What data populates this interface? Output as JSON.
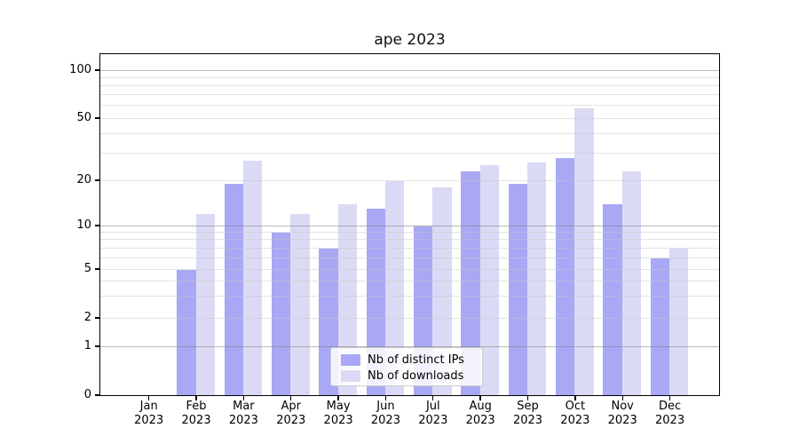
{
  "title": "ape 2023",
  "legend": {
    "entries": [
      {
        "label": "Nb of distinct IPs",
        "color": "#a8a8f5"
      },
      {
        "label": "Nb of downloads",
        "color": "#dadaf5"
      }
    ],
    "position": "lower center"
  },
  "axes": {
    "yticks": [
      0,
      1,
      2,
      5,
      10,
      20,
      50,
      100
    ],
    "scale": "symlog"
  },
  "chart_data": {
    "type": "bar",
    "title": "ape 2023",
    "categories": [
      "Jan 2023",
      "Feb 2023",
      "Mar 2023",
      "Apr 2023",
      "May 2023",
      "Jun 2023",
      "Jul 2023",
      "Aug 2023",
      "Sep 2023",
      "Oct 2023",
      "Nov 2023",
      "Dec 2023"
    ],
    "series": [
      {
        "name": "Nb of distinct IPs",
        "color": "#a8a8f5",
        "values": [
          0,
          5,
          19,
          9,
          7,
          13,
          10,
          23,
          19,
          28,
          14,
          6
        ]
      },
      {
        "name": "Nb of downloads",
        "color": "#dadaf5",
        "values": [
          0,
          12,
          27,
          12,
          14,
          20,
          18,
          25,
          26,
          58,
          23,
          7
        ]
      }
    ],
    "xlabel": "",
    "ylabel": "",
    "ylim": [
      0,
      128
    ],
    "yticks": [
      0,
      1,
      2,
      5,
      10,
      20,
      50,
      100
    ],
    "scale": "symlog",
    "grid": true,
    "legend_position": "lower center"
  }
}
